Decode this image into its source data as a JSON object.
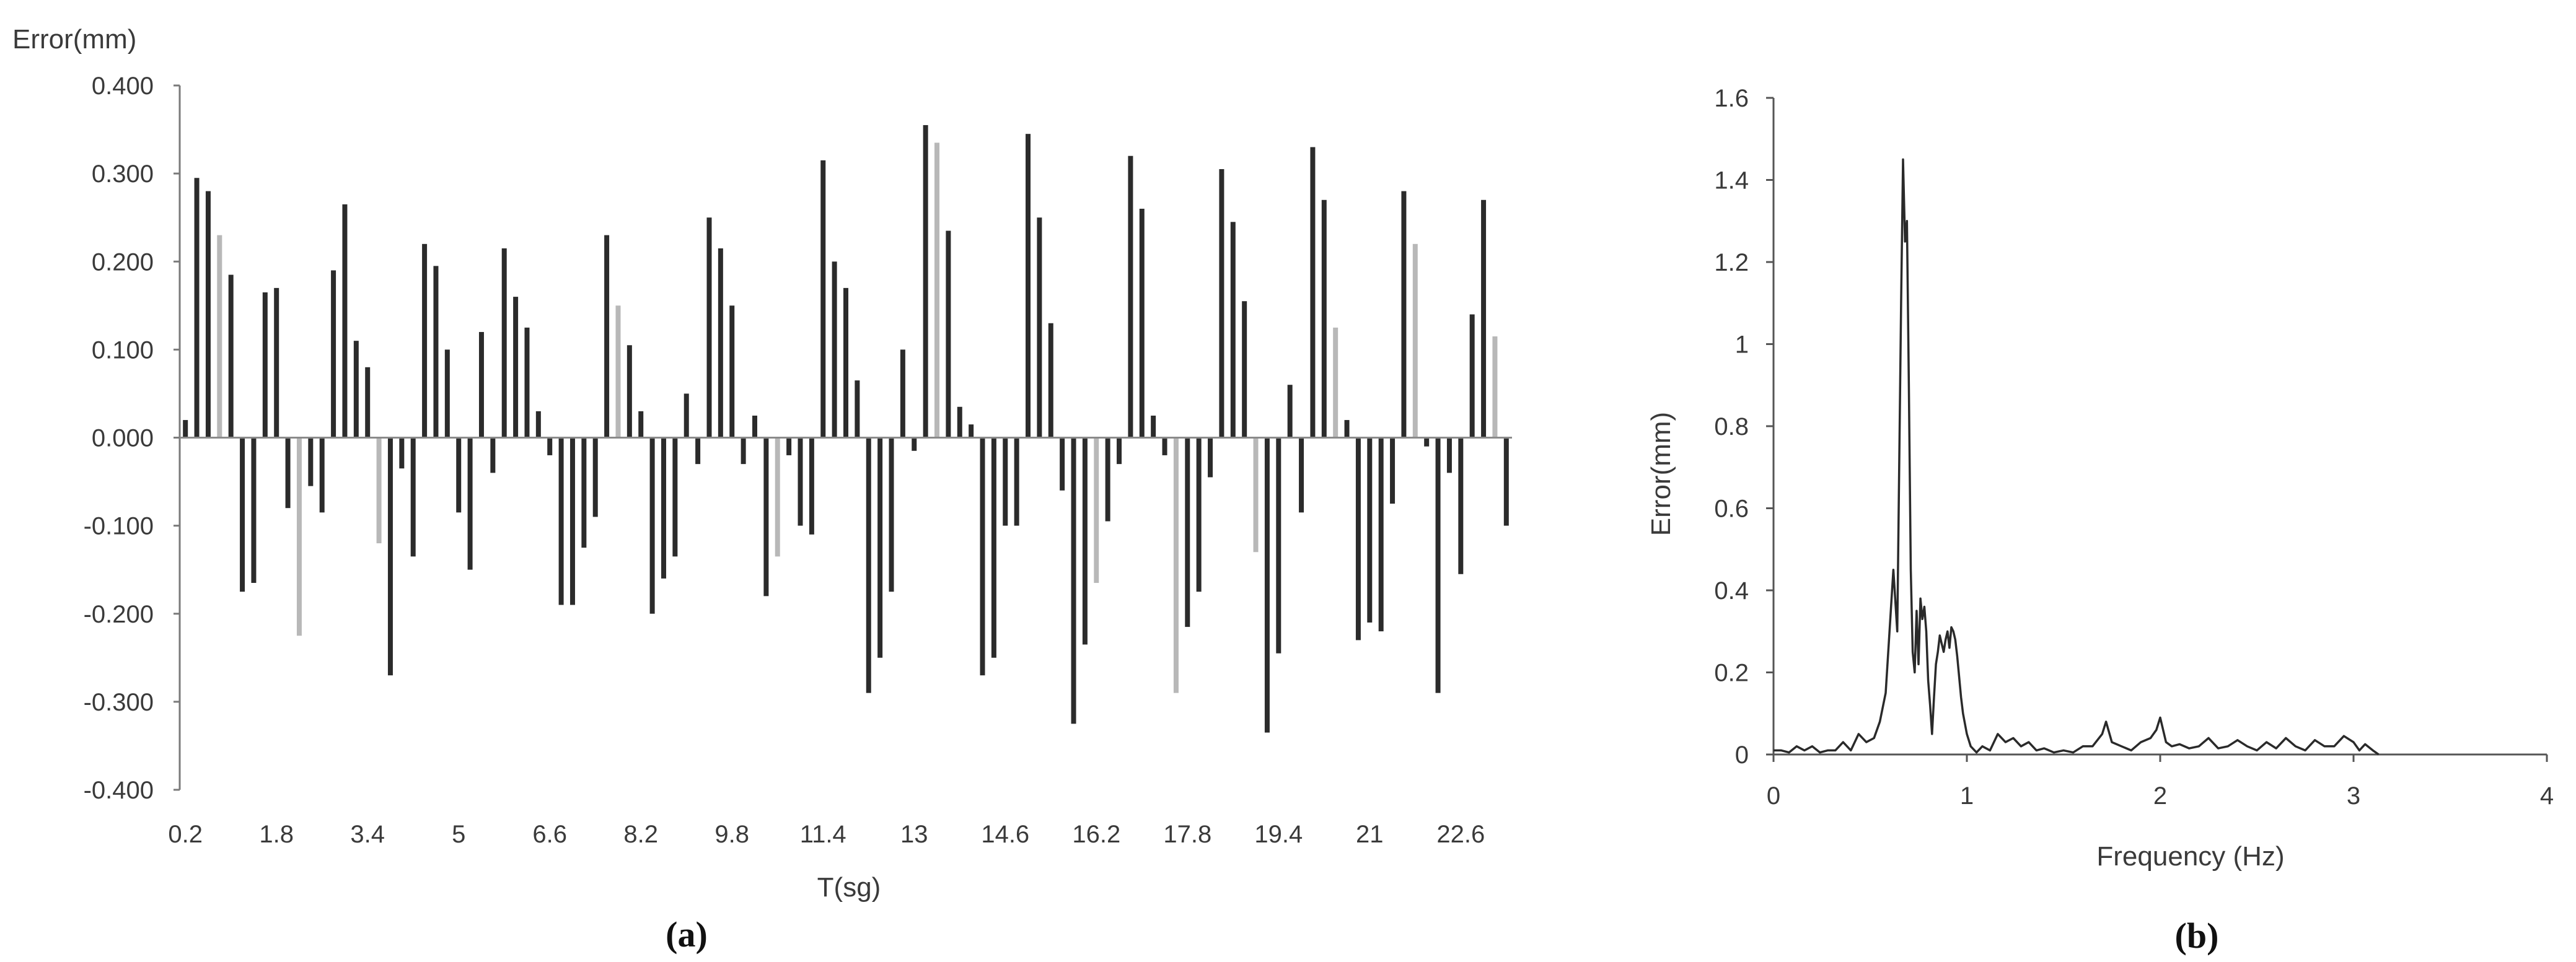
{
  "chart_data": [
    {
      "type": "bar",
      "panel": "(a)",
      "title": "",
      "ylabel": "Error(mm)",
      "xlabel": "T(sg)",
      "ylim": [
        -0.4,
        0.4
      ],
      "yticks": [
        "0.400",
        "0.300",
        "0.200",
        "0.100",
        "0.000",
        "-0.100",
        "-0.200",
        "-0.300",
        "-0.400"
      ],
      "xticks": [
        "0.2",
        "1.8",
        "3.4",
        "5",
        "6.6",
        "8.2",
        "9.8",
        "11.4",
        "13",
        "14.6",
        "16.2",
        "17.8",
        "19.4",
        "21",
        "22.6"
      ],
      "x_start": 0.2,
      "x_step": 0.2,
      "series": [
        {
          "values": [
            0.02,
            0.295,
            0.28,
            0.23,
            0.185,
            -0.175,
            -0.165,
            0.165,
            0.17,
            -0.08,
            -0.225,
            -0.055,
            -0.085,
            0.19,
            0.265,
            0.11,
            0.08,
            -0.12,
            -0.27,
            -0.035,
            -0.135,
            0.22,
            0.195,
            0.1,
            -0.085,
            -0.15,
            0.12,
            -0.04,
            0.215,
            0.16,
            0.125,
            0.03,
            -0.02,
            -0.19,
            -0.19,
            -0.125,
            -0.09,
            0.23,
            0.15,
            0.105,
            0.03,
            -0.2,
            -0.16,
            -0.135,
            0.05,
            -0.03,
            0.25,
            0.215,
            0.15,
            -0.03,
            0.025,
            -0.18,
            -0.135,
            -0.02,
            -0.1,
            -0.11,
            0.315,
            0.2,
            0.17,
            0.065,
            -0.29,
            -0.25,
            -0.175,
            0.1,
            -0.015,
            0.355,
            0.335,
            0.235,
            0.035,
            0.015,
            -0.27,
            -0.25,
            -0.1,
            -0.1,
            0.345,
            0.25,
            0.13,
            -0.06,
            -0.325,
            -0.235,
            -0.165,
            -0.095,
            -0.03,
            0.32,
            0.26,
            0.025,
            -0.02,
            -0.29,
            -0.215,
            -0.175,
            -0.045,
            0.305,
            0.245,
            0.155,
            -0.13,
            -0.335,
            -0.245,
            0.06,
            -0.085,
            0.33,
            0.27,
            0.125,
            0.02,
            -0.23,
            -0.21,
            -0.22,
            -0.075,
            0.28,
            0.22,
            -0.01,
            -0.29,
            -0.04,
            -0.155,
            0.14,
            0.27,
            0.115,
            -0.1
          ]
        }
      ]
    },
    {
      "type": "line",
      "panel": "(b)",
      "title": "",
      "ylabel": "Error(mm)",
      "xlabel": "Frequency (Hz)",
      "xlim": [
        0,
        4
      ],
      "ylim": [
        0,
        1.6
      ],
      "xticks": [
        "0",
        "1",
        "2",
        "3",
        "4"
      ],
      "yticks": [
        "1.6",
        "1.4",
        "1.2",
        "1",
        "0.8",
        "0.6",
        "0.4",
        "0.2",
        "0"
      ],
      "series": [
        {
          "x": [
            0,
            0.04,
            0.08,
            0.12,
            0.16,
            0.2,
            0.24,
            0.28,
            0.32,
            0.36,
            0.4,
            0.44,
            0.48,
            0.52,
            0.55,
            0.58,
            0.6,
            0.62,
            0.64,
            0.65,
            0.66,
            0.67,
            0.68,
            0.69,
            0.7,
            0.71,
            0.72,
            0.73,
            0.74,
            0.75,
            0.76,
            0.77,
            0.78,
            0.79,
            0.8,
            0.81,
            0.82,
            0.83,
            0.84,
            0.85,
            0.86,
            0.87,
            0.88,
            0.89,
            0.9,
            0.91,
            0.92,
            0.93,
            0.94,
            0.95,
            0.96,
            0.97,
            0.98,
            1.0,
            1.02,
            1.05,
            1.08,
            1.12,
            1.16,
            1.2,
            1.24,
            1.28,
            1.32,
            1.36,
            1.4,
            1.45,
            1.5,
            1.55,
            1.6,
            1.65,
            1.7,
            1.72,
            1.75,
            1.8,
            1.85,
            1.9,
            1.95,
            1.98,
            2.0,
            2.03,
            2.06,
            2.1,
            2.15,
            2.2,
            2.25,
            2.3,
            2.35,
            2.4,
            2.45,
            2.5,
            2.55,
            2.6,
            2.65,
            2.7,
            2.75,
            2.8,
            2.85,
            2.9,
            2.95,
            3.0,
            3.03,
            3.06,
            3.1,
            3.13
          ],
          "y": [
            0.01,
            0.01,
            0.005,
            0.02,
            0.01,
            0.02,
            0.005,
            0.01,
            0.01,
            0.03,
            0.01,
            0.05,
            0.03,
            0.04,
            0.08,
            0.15,
            0.3,
            0.45,
            0.3,
            0.7,
            1.1,
            1.45,
            1.25,
            1.3,
            0.9,
            0.45,
            0.25,
            0.2,
            0.35,
            0.22,
            0.38,
            0.33,
            0.36,
            0.3,
            0.18,
            0.12,
            0.05,
            0.14,
            0.22,
            0.25,
            0.29,
            0.27,
            0.25,
            0.28,
            0.3,
            0.26,
            0.31,
            0.3,
            0.28,
            0.24,
            0.19,
            0.14,
            0.1,
            0.05,
            0.02,
            0.005,
            0.02,
            0.01,
            0.05,
            0.03,
            0.04,
            0.02,
            0.03,
            0.01,
            0.015,
            0.005,
            0.01,
            0.005,
            0.02,
            0.02,
            0.05,
            0.08,
            0.03,
            0.02,
            0.01,
            0.03,
            0.04,
            0.06,
            0.09,
            0.03,
            0.02,
            0.025,
            0.015,
            0.02,
            0.04,
            0.015,
            0.02,
            0.035,
            0.02,
            0.01,
            0.03,
            0.015,
            0.04,
            0.02,
            0.01,
            0.035,
            0.02,
            0.02,
            0.045,
            0.03,
            0.01,
            0.025,
            0.01,
            0.0
          ]
        }
      ]
    }
  ]
}
